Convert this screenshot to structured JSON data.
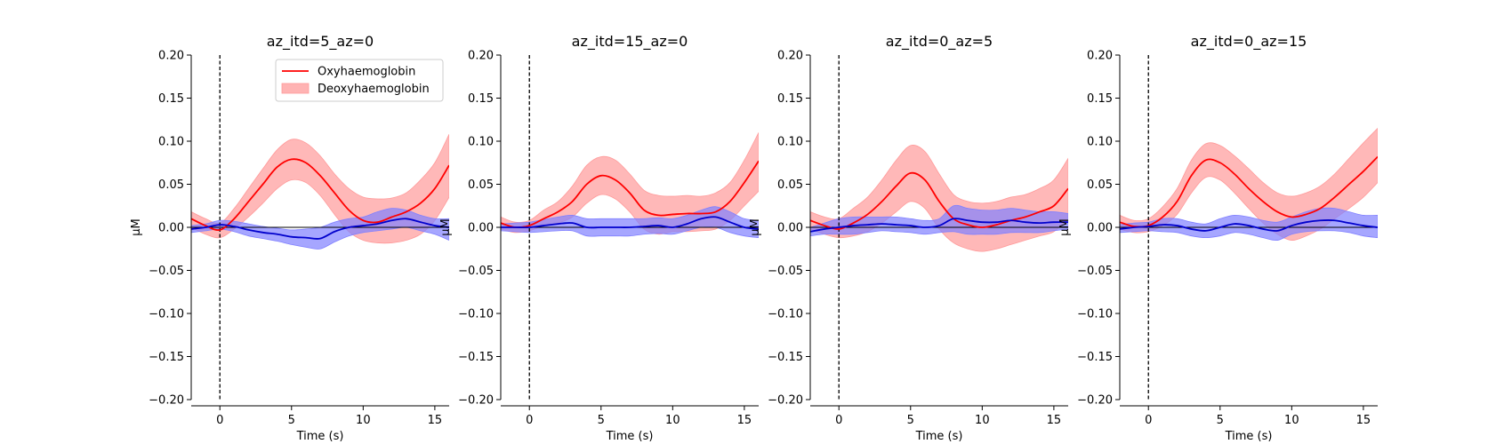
{
  "chart_data": [
    {
      "type": "line",
      "title": "az_itd=5_az=0",
      "xlabel": "Time (s)",
      "ylabel": "µM",
      "xlim": [
        -2,
        16
      ],
      "ylim": [
        -0.2,
        0.2
      ],
      "xticks": [
        0,
        5,
        10,
        15
      ],
      "yticks": [
        -0.2,
        -0.15,
        -0.1,
        -0.05,
        0,
        0.05,
        0.1,
        0.15,
        0.2
      ],
      "ytick_labels": [
        "−0.20",
        "−0.15",
        "−0.10",
        "−0.05",
        "0.00",
        "0.05",
        "0.10",
        "0.15",
        "0.20"
      ],
      "event_line_x": 0,
      "legend": "top-right",
      "x": [
        -2,
        -1,
        0,
        1,
        2,
        3,
        4,
        5,
        6,
        7,
        8,
        9,
        10,
        11,
        12,
        13,
        14,
        15,
        16
      ],
      "series": [
        {
          "name": "Oxyhaemoglobin",
          "color": "#ff0000",
          "band_color": "#ff9a9a",
          "values": [
            0.01,
            0.002,
            -0.003,
            0.01,
            0.03,
            0.05,
            0.07,
            0.079,
            0.075,
            0.06,
            0.04,
            0.02,
            0.008,
            0.006,
            0.012,
            0.018,
            0.028,
            0.045,
            0.072
          ],
          "lower": [
            0.0,
            -0.008,
            -0.012,
            -0.002,
            0.012,
            0.028,
            0.045,
            0.055,
            0.052,
            0.037,
            0.015,
            -0.005,
            -0.015,
            -0.018,
            -0.018,
            -0.015,
            -0.008,
            0.008,
            0.035
          ],
          "upper": [
            0.018,
            0.01,
            0.005,
            0.022,
            0.045,
            0.068,
            0.09,
            0.102,
            0.098,
            0.083,
            0.062,
            0.045,
            0.035,
            0.033,
            0.034,
            0.04,
            0.055,
            0.075,
            0.108
          ]
        },
        {
          "name": "Deoxyhaemoglobin",
          "color": "#0000cc",
          "band_color": "#8080ff",
          "values": [
            -0.002,
            0.0,
            0.003,
            0.001,
            -0.003,
            -0.006,
            -0.008,
            -0.011,
            -0.012,
            -0.013,
            -0.005,
            0.0,
            0.002,
            0.004,
            0.008,
            0.01,
            0.006,
            0.002,
            0.0
          ],
          "lower": [
            -0.006,
            -0.004,
            -0.002,
            -0.005,
            -0.01,
            -0.013,
            -0.016,
            -0.02,
            -0.023,
            -0.025,
            -0.017,
            -0.01,
            -0.006,
            -0.004,
            -0.002,
            0.0,
            -0.004,
            -0.008,
            -0.015
          ],
          "upper": [
            0.002,
            0.004,
            0.008,
            0.007,
            0.004,
            0.001,
            -0.001,
            -0.003,
            -0.002,
            0.0,
            0.006,
            0.01,
            0.012,
            0.018,
            0.022,
            0.02,
            0.014,
            0.01,
            0.01
          ]
        }
      ]
    },
    {
      "type": "line",
      "title": "az_itd=15_az=0",
      "xlabel": "Time (s)",
      "ylabel": "µM",
      "xlim": [
        -2,
        16
      ],
      "ylim": [
        -0.2,
        0.2
      ],
      "xticks": [
        0,
        5,
        10,
        15
      ],
      "yticks": [
        -0.2,
        -0.15,
        -0.1,
        -0.05,
        0,
        0.05,
        0.1,
        0.15,
        0.2
      ],
      "ytick_labels": [
        "−0.20",
        "−0.15",
        "−0.10",
        "−0.05",
        "0.00",
        "0.05",
        "0.10",
        "0.15",
        "0.20"
      ],
      "event_line_x": 0,
      "x": [
        -2,
        -1,
        0,
        1,
        2,
        3,
        4,
        5,
        6,
        7,
        8,
        9,
        10,
        11,
        12,
        13,
        14,
        15,
        16
      ],
      "series": [
        {
          "name": "Oxyhaemoglobin",
          "color": "#ff0000",
          "band_color": "#ff9a9a",
          "values": [
            0.005,
            0.0,
            0.002,
            0.01,
            0.018,
            0.03,
            0.05,
            0.06,
            0.055,
            0.04,
            0.02,
            0.014,
            0.015,
            0.016,
            0.016,
            0.018,
            0.03,
            0.052,
            0.077
          ],
          "lower": [
            -0.002,
            -0.006,
            -0.004,
            0.002,
            0.005,
            0.012,
            0.028,
            0.038,
            0.033,
            0.018,
            -0.002,
            -0.008,
            -0.005,
            -0.005,
            -0.004,
            -0.002,
            0.008,
            0.025,
            0.042
          ],
          "upper": [
            0.012,
            0.006,
            0.008,
            0.02,
            0.03,
            0.048,
            0.072,
            0.082,
            0.078,
            0.062,
            0.043,
            0.037,
            0.036,
            0.037,
            0.036,
            0.04,
            0.052,
            0.078,
            0.11
          ]
        },
        {
          "name": "Deoxyhaemoglobin",
          "color": "#0000cc",
          "band_color": "#8080ff",
          "values": [
            0.0,
            0.0,
            0.0,
            0.002,
            0.004,
            0.005,
            0.0,
            0.0,
            0.0,
            0.0,
            0.001,
            0.002,
            0.0,
            0.004,
            0.01,
            0.012,
            0.006,
            0.0,
            -0.002
          ],
          "lower": [
            -0.004,
            -0.005,
            -0.006,
            -0.005,
            -0.004,
            -0.004,
            -0.01,
            -0.01,
            -0.01,
            -0.01,
            -0.008,
            -0.007,
            -0.008,
            -0.004,
            0.0,
            0.0,
            -0.006,
            -0.01,
            -0.012
          ],
          "upper": [
            0.004,
            0.005,
            0.006,
            0.009,
            0.012,
            0.014,
            0.01,
            0.01,
            0.01,
            0.01,
            0.01,
            0.011,
            0.01,
            0.014,
            0.02,
            0.024,
            0.018,
            0.01,
            0.008
          ]
        }
      ]
    },
    {
      "type": "line",
      "title": "az_itd=0_az=5",
      "xlabel": "Time (s)",
      "ylabel": "µM",
      "xlim": [
        -2,
        16
      ],
      "ylim": [
        -0.2,
        0.2
      ],
      "xticks": [
        0,
        5,
        10,
        15
      ],
      "yticks": [
        -0.2,
        -0.15,
        -0.1,
        -0.05,
        0,
        0.05,
        0.1,
        0.15,
        0.2
      ],
      "ytick_labels": [
        "−0.20",
        "−0.15",
        "−0.10",
        "−0.05",
        "0.00",
        "0.05",
        "0.10",
        "0.15",
        "0.20"
      ],
      "event_line_x": 0,
      "x": [
        -2,
        -1,
        0,
        1,
        2,
        3,
        4,
        5,
        6,
        7,
        8,
        9,
        10,
        11,
        12,
        13,
        14,
        15,
        16
      ],
      "series": [
        {
          "name": "Oxyhaemoglobin",
          "color": "#ff0000",
          "band_color": "#ff9a9a",
          "values": [
            0.008,
            0.002,
            -0.002,
            0.005,
            0.015,
            0.03,
            0.048,
            0.063,
            0.055,
            0.03,
            0.01,
            0.003,
            0.0,
            0.003,
            0.008,
            0.012,
            0.018,
            0.025,
            0.045
          ],
          "lower": [
            -0.002,
            -0.008,
            -0.012,
            -0.01,
            -0.005,
            0.005,
            0.018,
            0.03,
            0.022,
            -0.002,
            -0.018,
            -0.025,
            -0.028,
            -0.025,
            -0.02,
            -0.015,
            -0.01,
            -0.005,
            0.01
          ],
          "upper": [
            0.018,
            0.012,
            0.01,
            0.022,
            0.035,
            0.055,
            0.078,
            0.095,
            0.088,
            0.062,
            0.038,
            0.03,
            0.028,
            0.03,
            0.035,
            0.038,
            0.045,
            0.055,
            0.08
          ]
        },
        {
          "name": "Deoxyhaemoglobin",
          "color": "#0000cc",
          "band_color": "#8080ff",
          "values": [
            -0.005,
            -0.002,
            0.0,
            0.002,
            0.003,
            0.004,
            0.003,
            0.002,
            0.0,
            0.002,
            0.01,
            0.008,
            0.006,
            0.006,
            0.008,
            0.006,
            0.005,
            0.006,
            0.006
          ],
          "lower": [
            -0.01,
            -0.008,
            -0.008,
            -0.008,
            -0.006,
            -0.004,
            -0.005,
            -0.006,
            -0.008,
            -0.006,
            -0.005,
            -0.008,
            -0.008,
            -0.008,
            -0.006,
            -0.006,
            -0.006,
            -0.004,
            -0.002
          ],
          "upper": [
            0.0,
            0.005,
            0.01,
            0.012,
            0.012,
            0.012,
            0.012,
            0.01,
            0.008,
            0.01,
            0.025,
            0.022,
            0.02,
            0.02,
            0.022,
            0.02,
            0.018,
            0.018,
            0.016
          ]
        }
      ]
    },
    {
      "type": "line",
      "title": "az_itd=0_az=15",
      "xlabel": "Time (s)",
      "ylabel": "µM",
      "xlim": [
        -2,
        16
      ],
      "ylim": [
        -0.2,
        0.2
      ],
      "xticks": [
        0,
        5,
        10,
        15
      ],
      "yticks": [
        -0.2,
        -0.15,
        -0.1,
        -0.05,
        0,
        0.05,
        0.1,
        0.15,
        0.2
      ],
      "ytick_labels": [
        "−0.20",
        "−0.15",
        "−0.10",
        "−0.05",
        "0.00",
        "0.05",
        "0.10",
        "0.15",
        "0.20"
      ],
      "event_line_x": 0,
      "x": [
        -2,
        -1,
        0,
        1,
        2,
        3,
        4,
        5,
        6,
        7,
        8,
        9,
        10,
        11,
        12,
        13,
        14,
        15,
        16
      ],
      "series": [
        {
          "name": "Oxyhaemoglobin",
          "color": "#ff0000",
          "band_color": "#ff9a9a",
          "values": [
            0.006,
            0.001,
            0.002,
            0.012,
            0.03,
            0.06,
            0.078,
            0.075,
            0.062,
            0.045,
            0.03,
            0.018,
            0.012,
            0.015,
            0.022,
            0.035,
            0.05,
            0.065,
            0.082
          ],
          "lower": [
            -0.002,
            -0.006,
            -0.005,
            0.002,
            0.015,
            0.04,
            0.058,
            0.055,
            0.04,
            0.022,
            0.005,
            -0.008,
            -0.015,
            -0.01,
            -0.002,
            0.01,
            0.022,
            0.035,
            0.052
          ],
          "upper": [
            0.014,
            0.008,
            0.01,
            0.024,
            0.045,
            0.078,
            0.097,
            0.095,
            0.083,
            0.068,
            0.052,
            0.04,
            0.036,
            0.04,
            0.048,
            0.062,
            0.08,
            0.098,
            0.115
          ]
        },
        {
          "name": "Deoxyhaemoglobin",
          "color": "#0000cc",
          "band_color": "#8080ff",
          "values": [
            -0.002,
            0.0,
            0.001,
            0.003,
            0.002,
            -0.002,
            -0.004,
            0.0,
            0.004,
            0.002,
            -0.002,
            -0.004,
            0.002,
            0.006,
            0.008,
            0.008,
            0.005,
            0.002,
            0.0
          ],
          "lower": [
            -0.006,
            -0.005,
            -0.004,
            -0.005,
            -0.006,
            -0.01,
            -0.012,
            -0.01,
            -0.006,
            -0.008,
            -0.012,
            -0.015,
            -0.008,
            -0.005,
            -0.004,
            -0.004,
            -0.006,
            -0.01,
            -0.012
          ],
          "upper": [
            0.003,
            0.005,
            0.006,
            0.01,
            0.01,
            0.006,
            0.004,
            0.01,
            0.014,
            0.012,
            0.008,
            0.006,
            0.012,
            0.018,
            0.022,
            0.022,
            0.018,
            0.014,
            0.014
          ]
        }
      ]
    }
  ]
}
